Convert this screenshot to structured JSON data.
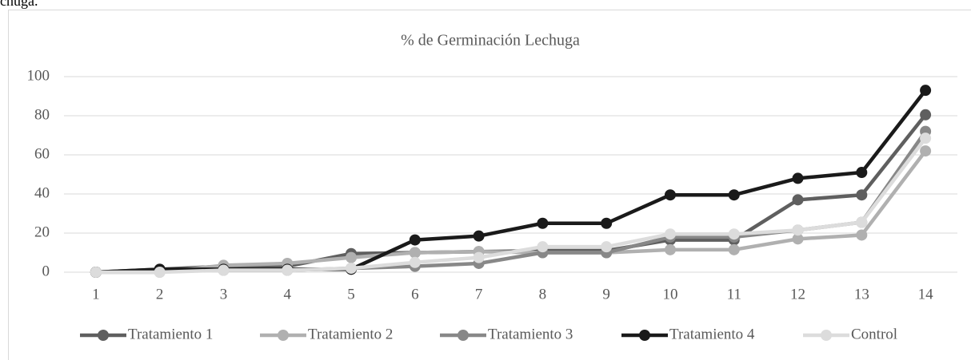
{
  "caption": "chuga.",
  "chart_data": {
    "type": "line",
    "title": "% de Germinación Lechuga",
    "categories": [
      "1",
      "2",
      "3",
      "4",
      "5",
      "6",
      "7",
      "8",
      "9",
      "10",
      "11",
      "12",
      "13",
      "14"
    ],
    "ylim": [
      0,
      100
    ],
    "yticks": [
      0,
      20,
      40,
      60,
      80,
      100
    ],
    "grid": true,
    "legend": "bottom",
    "series": [
      {
        "name": "Tratamiento 1",
        "color": "#5f5f5f",
        "values": [
          0,
          1.5,
          3,
          3,
          9.5,
          10,
          10.5,
          11,
          11,
          16.5,
          16.5,
          37,
          39.5,
          80.5
        ]
      },
      {
        "name": "Tratamiento 2",
        "color": "#b0b0b0",
        "values": [
          0,
          0,
          3.5,
          4.5,
          7.5,
          10,
          10.5,
          10,
          10,
          11.5,
          11.5,
          17,
          19,
          62
        ]
      },
      {
        "name": "Tratamiento 3",
        "color": "#888888",
        "values": [
          0,
          1,
          1,
          1,
          2,
          3,
          4.5,
          10,
          10,
          18,
          18,
          21.5,
          25.5,
          72
        ]
      },
      {
        "name": "Tratamiento 4",
        "color": "#1a1a1a",
        "values": [
          0,
          1.5,
          1.5,
          1.5,
          1.5,
          16.5,
          18.5,
          25,
          25,
          39.5,
          39.5,
          48,
          51,
          93
        ]
      },
      {
        "name": "Control",
        "color": "#dcdcdc",
        "values": [
          0,
          0,
          1,
          1,
          2,
          5,
          7.5,
          13,
          13,
          19.5,
          19.5,
          21.5,
          25.5,
          68.5
        ]
      }
    ]
  }
}
